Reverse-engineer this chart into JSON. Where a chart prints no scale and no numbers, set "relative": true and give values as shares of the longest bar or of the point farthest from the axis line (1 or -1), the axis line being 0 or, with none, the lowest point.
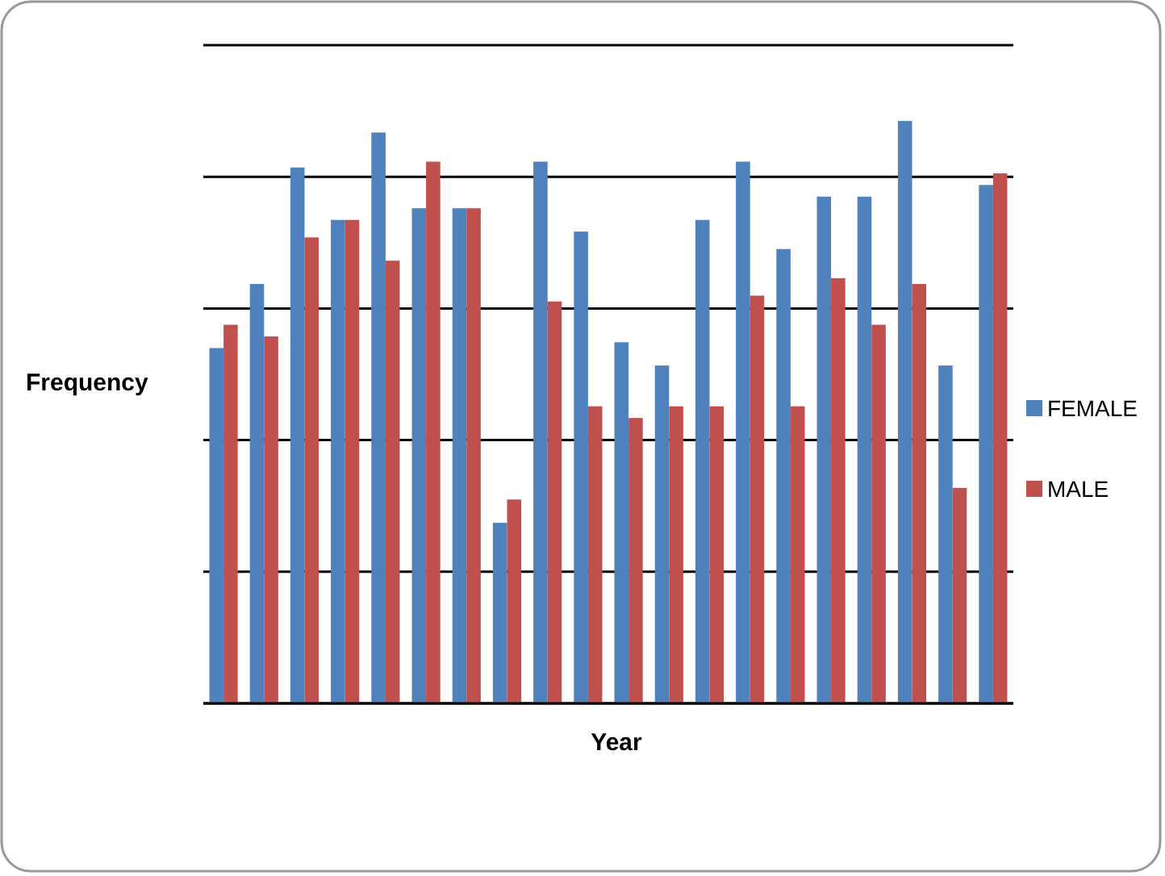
{
  "chart_data": {
    "type": "bar",
    "xlabel": "Year",
    "ylabel": "Frequency",
    "relative": true,
    "grid": "y",
    "legend": "right",
    "categories": [
      null,
      null,
      null,
      null,
      null,
      null,
      null,
      null,
      null,
      null,
      null,
      null,
      null,
      null,
      null,
      null,
      null,
      null,
      null,
      null
    ],
    "series": [
      {
        "name": "FEMALE",
        "color": "#4f81bd",
        "values": [
          0.61,
          0.72,
          0.92,
          0.83,
          0.98,
          0.85,
          0.85,
          0.31,
          0.93,
          0.81,
          0.62,
          0.58,
          0.83,
          0.93,
          0.78,
          0.87,
          0.87,
          1,
          0.58,
          0.89
        ]
      },
      {
        "name": "MALE",
        "color": "#c0504d",
        "values": [
          0.65,
          0.63,
          0.8,
          0.83,
          0.76,
          0.93,
          0.85,
          0.35,
          0.69,
          0.51,
          0.49,
          0.51,
          0.51,
          0.7,
          0.51,
          0.73,
          0.65,
          0.72,
          0.37,
          0.91
        ]
      }
    ]
  }
}
